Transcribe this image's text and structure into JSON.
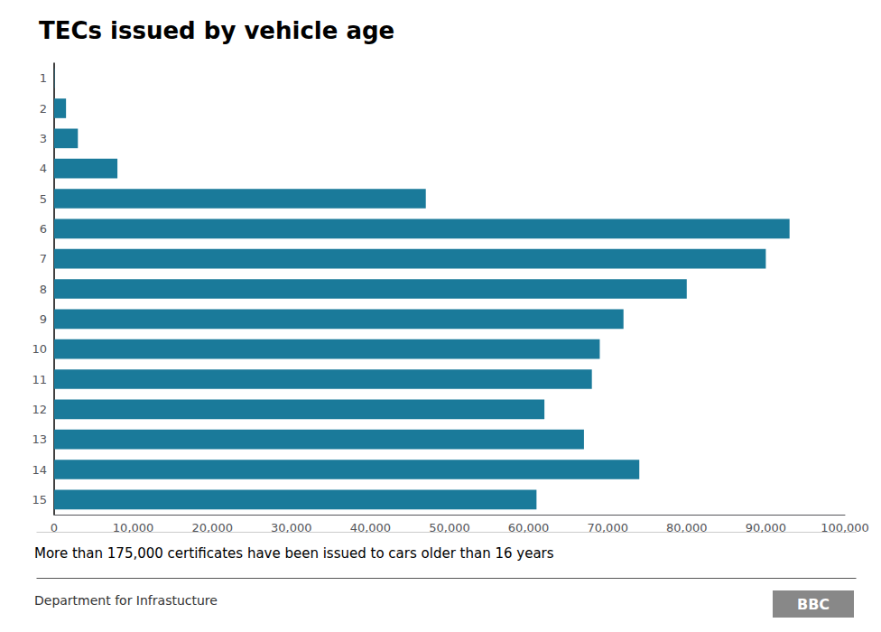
{
  "chart_data": {
    "type": "bar",
    "orientation": "horizontal",
    "title": "TECs issued by vehicle age",
    "categories": [
      "1",
      "2",
      "3",
      "4",
      "5",
      "6",
      "7",
      "8",
      "9",
      "10",
      "11",
      "12",
      "13",
      "14",
      "15"
    ],
    "values": [
      50,
      1500,
      3000,
      8000,
      47000,
      93000,
      90000,
      80000,
      72000,
      69000,
      68000,
      62000,
      67000,
      74000,
      61000
    ],
    "color": "#1a7a9a",
    "xlim": [
      0,
      100000
    ],
    "xticks": [
      0,
      {
        "value": 10000,
        "label": "10,000"
      },
      {
        "value": 20000,
        "label": "20,000"
      },
      {
        "value": 30000,
        "label": "30,000"
      },
      {
        "value": 40000,
        "label": "40,000"
      },
      {
        "value": 50000,
        "label": "50,000"
      },
      {
        "value": 60000,
        "label": "60,000"
      },
      {
        "value": 70000,
        "label": "70,000"
      },
      {
        "value": 80000,
        "label": "80,000"
      },
      {
        "value": 90000,
        "label": "90,000"
      },
      {
        "value": 100000,
        "label": "100,000"
      }
    ],
    "grid": false,
    "footnote": "More than 175,000 certificates have been issued to cars older than 16 years",
    "source": "Department for Infrastucture",
    "logo": "BBC"
  }
}
